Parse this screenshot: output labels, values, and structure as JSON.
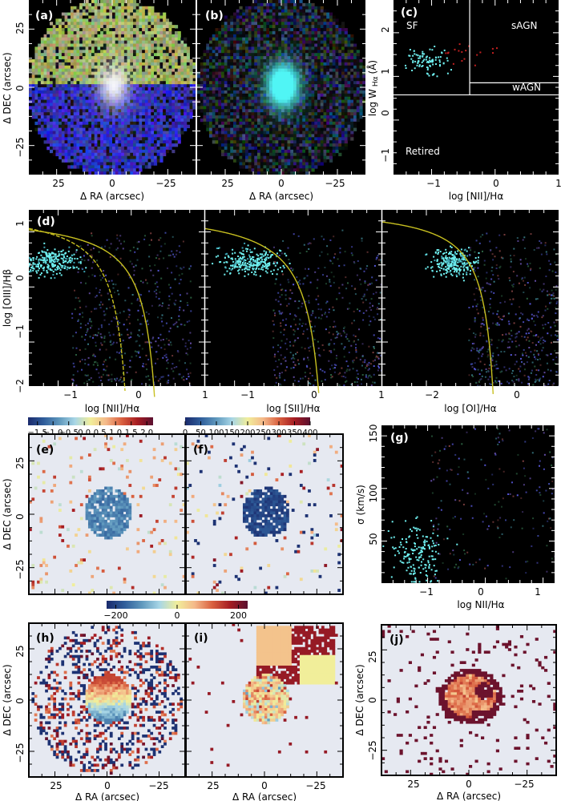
{
  "colors": {
    "map_bg": "#e6e9f1",
    "plot_bg": "#000000",
    "demarc_line": "#c8c020",
    "sf_points": "#6ff0f0",
    "cmap_rdylbu_r": [
      "#1a2a6c",
      "#2f5d9a",
      "#5f98bd",
      "#a8d6e6",
      "#f1ee9a",
      "#f4b889",
      "#d9603f",
      "#a51c22",
      "#5a1030"
    ]
  },
  "chart_data": [
    {
      "id": "a",
      "type": "heatmap",
      "panel_label": "(a)",
      "xlabel": "Δ RA (arcsec)",
      "ylabel": "Δ DEC (arcsec)",
      "xlim": [
        38,
        -38
      ],
      "ylim": [
        -38,
        38
      ],
      "xticks": [
        "25",
        "0",
        "−25"
      ],
      "yticks": [
        "25",
        "0",
        "−25"
      ],
      "xtick_values": [
        25,
        0,
        -25
      ],
      "ytick_values": [
        25,
        0,
        -25
      ],
      "description_kind": "rgb-composite"
    },
    {
      "id": "b",
      "type": "heatmap",
      "panel_label": "(b)",
      "xlabel": "Δ RA (arcsec)",
      "xlim": [
        38,
        -38
      ],
      "ylim": [
        -38,
        38
      ],
      "xticks": [
        "25",
        "0",
        "−25"
      ],
      "xtick_values": [
        25,
        0,
        -25
      ],
      "description_kind": "rgb-composite"
    },
    {
      "id": "c",
      "type": "scatter",
      "panel_label": "(c)",
      "xlabel": "log [NII]/Hα",
      "ylabel": "log W Hα (Å)",
      "ylabel_main": "log W",
      "ylabel_sub": "Hα",
      "ylabel_unit": "(Å)",
      "xlim": [
        -1.6,
        1.0
      ],
      "ylim": [
        -1.35,
        2.7
      ],
      "xticks": [
        "−1",
        "0",
        "1"
      ],
      "xtick_values": [
        -1,
        0,
        1
      ],
      "yticks": [
        "2",
        "1",
        "0",
        "−1"
      ],
      "ytick_values": [
        2,
        1,
        0,
        -1
      ],
      "regions": [
        "SF",
        "sAGN",
        "wAGN",
        "Retired"
      ],
      "dividers": {
        "x_nii": -0.4,
        "y_sf_retired": 0.5,
        "y_sagn_wagn": 0.78
      }
    },
    {
      "id": "d1",
      "type": "scatter",
      "panel_label": "(d)",
      "xlabel": "log [NII]/Hα",
      "ylabel": "log [OIII]/Hβ",
      "xlim": [
        -1.5,
        1.0
      ],
      "ylim": [
        -2.0,
        1.25
      ],
      "xticks": [
        "−1",
        "0"
      ],
      "xtick_values": [
        -1,
        0
      ],
      "yticks": [
        "1",
        "0",
        "−1",
        "−2"
      ],
      "ytick_values": [
        1,
        0,
        -1,
        -2
      ],
      "curves": [
        "Kewley01",
        "Kauffmann03"
      ]
    },
    {
      "id": "d2",
      "type": "scatter",
      "xlabel": "log [SII]/Hα",
      "xlim": [
        -1.5,
        1.0
      ],
      "ylim": [
        -2.0,
        1.25
      ],
      "xticks": [
        "1",
        "−1",
        "0"
      ],
      "xtick_values": [
        -1,
        0
      ],
      "left_edge_label": "1",
      "curves": [
        "Kewley01"
      ]
    },
    {
      "id": "d3",
      "type": "scatter",
      "xlabel": "log [OI]/Hα",
      "xlim": [
        -3.0,
        0.5
      ],
      "ylim": [
        -2.0,
        1.25
      ],
      "xticks": [
        "1",
        "−2",
        "0"
      ],
      "xtick_values": [
        -2,
        0
      ],
      "left_edge_label": "1",
      "curves": [
        "Kewley01"
      ]
    },
    {
      "id": "e",
      "type": "heatmap",
      "panel_label": "(e)",
      "ylabel": "Δ DEC (arcsec)",
      "xlim": [
        38,
        -38
      ],
      "ylim": [
        -38,
        38
      ],
      "yticks": [
        "25",
        "0",
        "−25"
      ],
      "ytick_values": [
        25,
        0,
        -25
      ],
      "colorbar": {
        "range": [
          -1.8,
          2.2
        ],
        "ticks": [
          "−1.5",
          "−1.0",
          "−0.5",
          "0.0",
          "0.5",
          "1.0",
          "1.5",
          "2.0"
        ],
        "tick_values": [
          -1.5,
          -1.0,
          -0.5,
          0.0,
          0.5,
          1.0,
          1.5,
          2.0
        ]
      }
    },
    {
      "id": "f",
      "type": "heatmap",
      "panel_label": "(f)",
      "xlim": [
        38,
        -38
      ],
      "ylim": [
        -38,
        38
      ],
      "colorbar": {
        "range": [
          0,
          400
        ],
        "ticks": [
          "0",
          "50",
          "100",
          "150",
          "200",
          "250",
          "300",
          "350",
          "400"
        ],
        "tick_values": [
          0,
          50,
          100,
          150,
          200,
          250,
          300,
          350,
          400
        ]
      }
    },
    {
      "id": "g",
      "type": "scatter",
      "panel_label": "(g)",
      "xlabel": "log NII/Hα",
      "ylabel": "σ (km/s)",
      "xlim": [
        -1.75,
        1.3
      ],
      "ylim": [
        10,
        160
      ],
      "xticks": [
        "−1",
        "0",
        "1"
      ],
      "xtick_values": [
        -1,
        0,
        1
      ],
      "yticks": [
        "150",
        "100",
        "50"
      ],
      "ytick_values": [
        150,
        100,
        50
      ]
    },
    {
      "id": "h",
      "type": "heatmap",
      "panel_label": "(h)",
      "xlabel": "Δ RA (arcsec)",
      "ylabel": "Δ DEC (arcsec)",
      "xlim": [
        38,
        -38
      ],
      "ylim": [
        -38,
        38
      ],
      "xticks": [
        "25",
        "0",
        "−25"
      ],
      "xtick_values": [
        25,
        0,
        -25
      ],
      "yticks": [
        "25",
        "0",
        "−25"
      ],
      "ytick_values": [
        25,
        0,
        -25
      ],
      "colorbar": {
        "range": [
          -230,
          230
        ],
        "ticks": [
          "−200",
          "0",
          "200"
        ],
        "tick_values": [
          -200,
          0,
          200
        ]
      }
    },
    {
      "id": "i",
      "type": "heatmap",
      "panel_label": "(i)",
      "xlabel": "Δ RA (arcsec)",
      "xlim": [
        38,
        -38
      ],
      "ylim": [
        -38,
        38
      ],
      "xticks": [
        "25",
        "0",
        "−25"
      ],
      "xtick_values": [
        25,
        0,
        -25
      ]
    },
    {
      "id": "j",
      "type": "heatmap",
      "panel_label": "(j)",
      "xlabel": "Δ RA (arcsec)",
      "ylabel": "Δ DEC (arcsec)",
      "xlim": [
        38,
        -38
      ],
      "ylim": [
        -38,
        38
      ],
      "xticks": [
        "25",
        "0",
        "−25"
      ],
      "xtick_values": [
        25,
        0,
        -25
      ],
      "yticks": [
        "25",
        "0",
        "−25"
      ],
      "ytick_values": [
        25,
        0,
        -25
      ]
    }
  ]
}
